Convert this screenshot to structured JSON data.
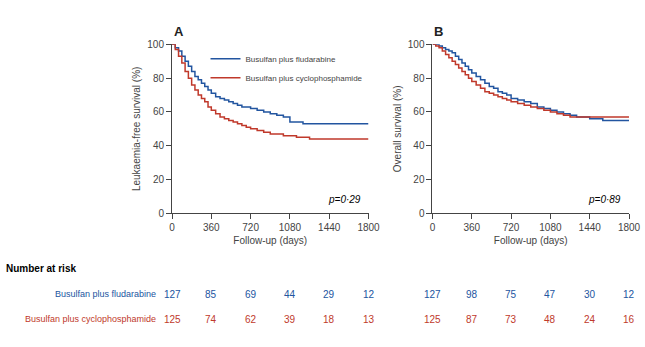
{
  "chart_data": [
    {
      "type": "step",
      "title": "A",
      "x_label": "Follow-up (days)",
      "y_label": "Leukaemia-free survival (%)",
      "x": [
        0,
        30,
        60,
        90,
        120,
        150,
        180,
        210,
        240,
        270,
        300,
        330,
        360,
        400,
        440,
        480,
        520,
        560,
        600,
        640,
        680,
        720,
        780,
        840,
        900,
        960,
        1020,
        1080,
        1140,
        1200,
        1260,
        1320,
        1380,
        1440,
        1500,
        1560,
        1620,
        1680,
        1740,
        1800
      ],
      "series": [
        {
          "name": "Busulfan plus fludarabine",
          "color": "#2255a0",
          "values": [
            100,
            98,
            96,
            93,
            90,
            87,
            84,
            81,
            79,
            77,
            75,
            73,
            71,
            69,
            68,
            67,
            66,
            65,
            64,
            63,
            63,
            62,
            61,
            60,
            59,
            58,
            57,
            54,
            54,
            53,
            53,
            53,
            53,
            53,
            53,
            53,
            53,
            53,
            53,
            53
          ]
        },
        {
          "name": "Busulfan plus cyclophosphamide",
          "color": "#c0392b",
          "values": [
            100,
            97,
            93,
            89,
            84,
            80,
            76,
            73,
            70,
            68,
            66,
            63,
            61,
            59,
            57,
            56,
            55,
            54,
            53,
            52,
            51,
            50,
            49,
            48,
            47,
            47,
            46,
            46,
            45,
            45,
            44,
            44,
            44,
            44,
            44,
            44,
            44,
            44,
            44,
            44
          ]
        }
      ],
      "xlim": [
        0,
        1800
      ],
      "xticks": [
        0,
        360,
        720,
        1080,
        1440,
        1800
      ],
      "ylim": [
        0,
        100
      ],
      "yticks": [
        0,
        20,
        40,
        60,
        80,
        100
      ],
      "grid": false,
      "legend": "upper right",
      "annotations": [
        {
          "text": "p=0·29"
        }
      ],
      "risk_table": {
        "title": "Number at risk",
        "times": [
          0,
          360,
          720,
          1080,
          1440,
          1800
        ],
        "rows": [
          {
            "name": "Busulfan plus fludarabine",
            "color": "#2255a0",
            "values": [
              127,
              85,
              69,
              44,
              29,
              12
            ]
          },
          {
            "name": "Busulfan plus cyclophosphamide",
            "color": "#c0392b",
            "values": [
              125,
              74,
              62,
              39,
              18,
              13
            ]
          }
        ]
      }
    },
    {
      "type": "step",
      "title": "B",
      "x_label": "Follow-up (days)",
      "y_label": "Overall survival (%)",
      "x": [
        0,
        30,
        60,
        90,
        120,
        150,
        180,
        210,
        240,
        270,
        300,
        330,
        360,
        400,
        440,
        480,
        520,
        560,
        600,
        640,
        680,
        720,
        780,
        840,
        900,
        960,
        1020,
        1080,
        1140,
        1200,
        1260,
        1320,
        1380,
        1440,
        1500,
        1560,
        1620,
        1680,
        1740,
        1800
      ],
      "series": [
        {
          "color": "#2255a0",
          "values": [
            100,
            100,
            99,
            98,
            97,
            96,
            95,
            93,
            91,
            89,
            87,
            85,
            83,
            81,
            79,
            77,
            75,
            74,
            72,
            71,
            70,
            68,
            67,
            66,
            65,
            63,
            62,
            61,
            60,
            59,
            58,
            57,
            57,
            56,
            56,
            55,
            55,
            55,
            55,
            55
          ]
        },
        {
          "color": "#c0392b",
          "values": [
            100,
            99,
            98,
            96,
            94,
            92,
            90,
            88,
            86,
            84,
            82,
            80,
            78,
            76,
            74,
            72,
            71,
            70,
            69,
            68,
            67,
            66,
            65,
            64,
            63,
            62,
            61,
            60,
            59,
            58,
            57,
            57,
            57,
            57,
            57,
            57,
            57,
            57,
            57,
            57
          ]
        }
      ],
      "xlim": [
        0,
        1800
      ],
      "xticks": [
        0,
        360,
        720,
        1080,
        1440,
        1800
      ],
      "ylim": [
        0,
        100
      ],
      "yticks": [
        0,
        20,
        40,
        60,
        80,
        100
      ],
      "grid": false,
      "annotations": [
        {
          "text": "p=0·89"
        }
      ],
      "risk_table": {
        "times": [
          0,
          360,
          720,
          1080,
          1440,
          1800
        ],
        "rows": [
          {
            "color": "#2255a0",
            "values": [
              127,
              98,
              75,
              47,
              30,
              12
            ]
          },
          {
            "color": "#c0392b",
            "values": [
              125,
              87,
              73,
              48,
              24,
              16
            ]
          }
        ]
      }
    }
  ]
}
